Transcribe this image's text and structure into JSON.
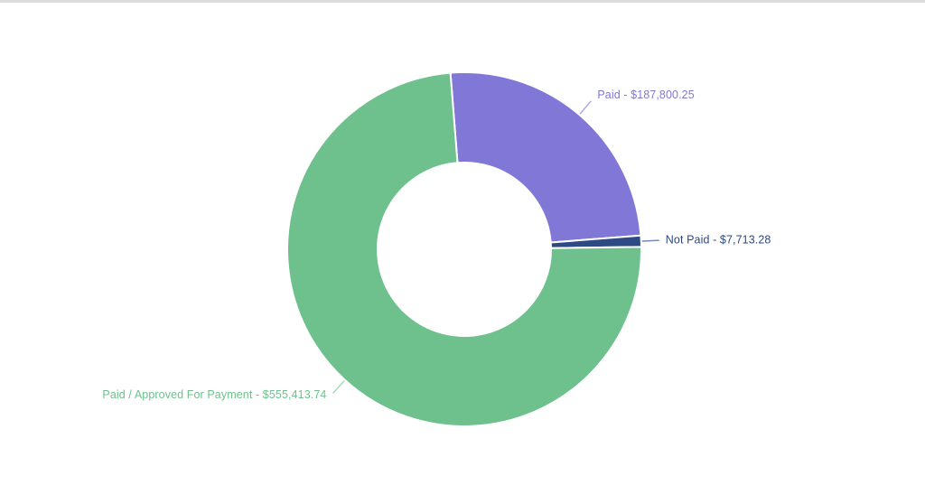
{
  "page": {
    "background_color": "#ffffff",
    "top_divider_color": "#dcdcdc"
  },
  "chart_data": {
    "type": "pie",
    "subtype": "donut",
    "title": "",
    "legend": "none",
    "label_style": "outside-with-leader-lines",
    "label_format": "{name} - {value}",
    "direction": "clockwise",
    "start_angle_deg": -4.5,
    "inner_radius_ratio": 0.49,
    "total": 750927.27,
    "slices": [
      {
        "name": "Paid",
        "value": 187800.25,
        "display": "Paid - $187,800.25",
        "color": "#8177d6"
      },
      {
        "name": "Not Paid",
        "value": 7713.28,
        "display": "Not Paid - $7,713.28",
        "color": "#2d4a85"
      },
      {
        "name": "Paid / Approved For Payment",
        "value": 555413.74,
        "display": "Paid / Approved For Payment - $555,413.74",
        "color": "#6ec08c"
      }
    ]
  }
}
